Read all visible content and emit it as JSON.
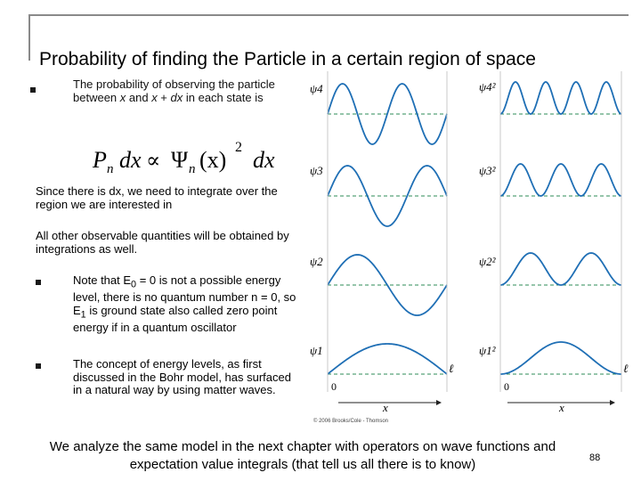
{
  "title": "Probability of finding the Particle in a certain region of space",
  "intro": {
    "before": "The probability of observing the particle between ",
    "x1": "x",
    "mid": " and ",
    "x2": "x",
    "plus": " + ",
    "dx": "dx",
    "after": " in each state is"
  },
  "formula": {
    "P": "P",
    "n": "n",
    "dx": "dx",
    "prop": "∝",
    "Psi": "Ψ",
    "arg": "(x)",
    "exp": "2"
  },
  "para1": "Since there is dx, we need to integrate over the region we are interested in",
  "para2": "All other observable quantities will be obtained by integrations as well.",
  "bullet1": {
    "before": "Note that E",
    "sub0": "0",
    "mid": " = 0 is not a possible energy level, there is no quantum number n = 0, so E",
    "sub1": "1",
    "after": " is ground state also called zero point energy if in a quantum oscillator"
  },
  "bullet2": "The concept of energy levels, as first discussed in the Bohr model, has surfaced in a natural way by using matter waves.",
  "figure": {
    "left_labels": [
      "ψ4",
      "ψ3",
      "ψ2",
      "ψ1"
    ],
    "right_labels": [
      "ψ4²",
      "ψ3²",
      "ψ2²",
      "ψ1²"
    ],
    "zero": "0",
    "ell": "ℓ",
    "x": "x",
    "credit": "© 2006 Brooks/Cole - Thomson",
    "colors": {
      "wave": "#1f6fb5",
      "axis": "#2e8b57"
    }
  },
  "footer": "We analyze the same model in the next chapter with operators on wave functions and expectation value integrals (that tell us all there is to know)",
  "page_number": "88"
}
